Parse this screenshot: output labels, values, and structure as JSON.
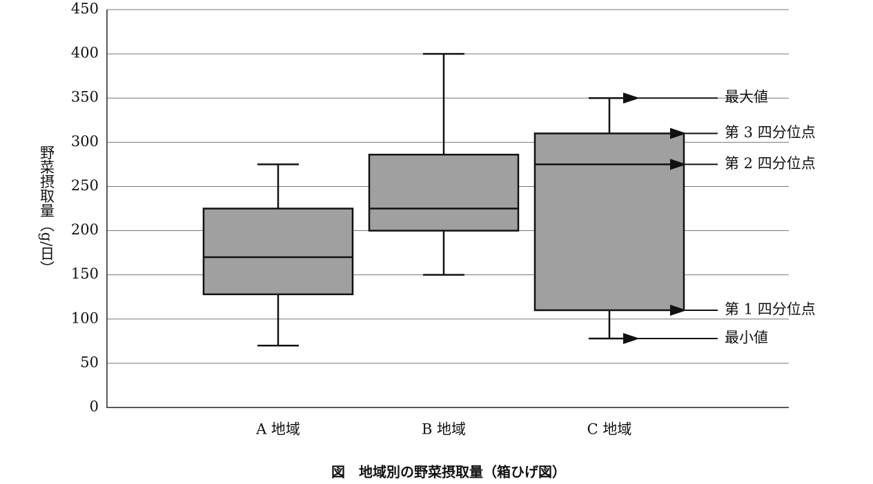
{
  "chart_data": {
    "type": "box",
    "title": "図　地域別の野菜摂取量（箱ひげ図）",
    "y_label": "野菜摂取量（g/日）",
    "categories": [
      "A 地域",
      "B 地域",
      "C 地域"
    ],
    "boxes": [
      {
        "min": 70,
        "q1": 128,
        "median": 170,
        "q3": 225,
        "max": 275
      },
      {
        "min": 150,
        "q1": 200,
        "median": 225,
        "q3": 286,
        "max": 400
      },
      {
        "min": 78,
        "q1": 110,
        "median": 275,
        "q3": 310,
        "max": 350
      }
    ],
    "color": "#a0a0a0",
    "ylim": [
      0,
      450
    ],
    "yticks": [
      0,
      50,
      100,
      150,
      200,
      250,
      300,
      350,
      400,
      450
    ],
    "grid": true,
    "annotations": [
      "最大値",
      "第 3 四分位点",
      "第 2 四分位点",
      "第 1 四分位点",
      "最小値"
    ]
  }
}
